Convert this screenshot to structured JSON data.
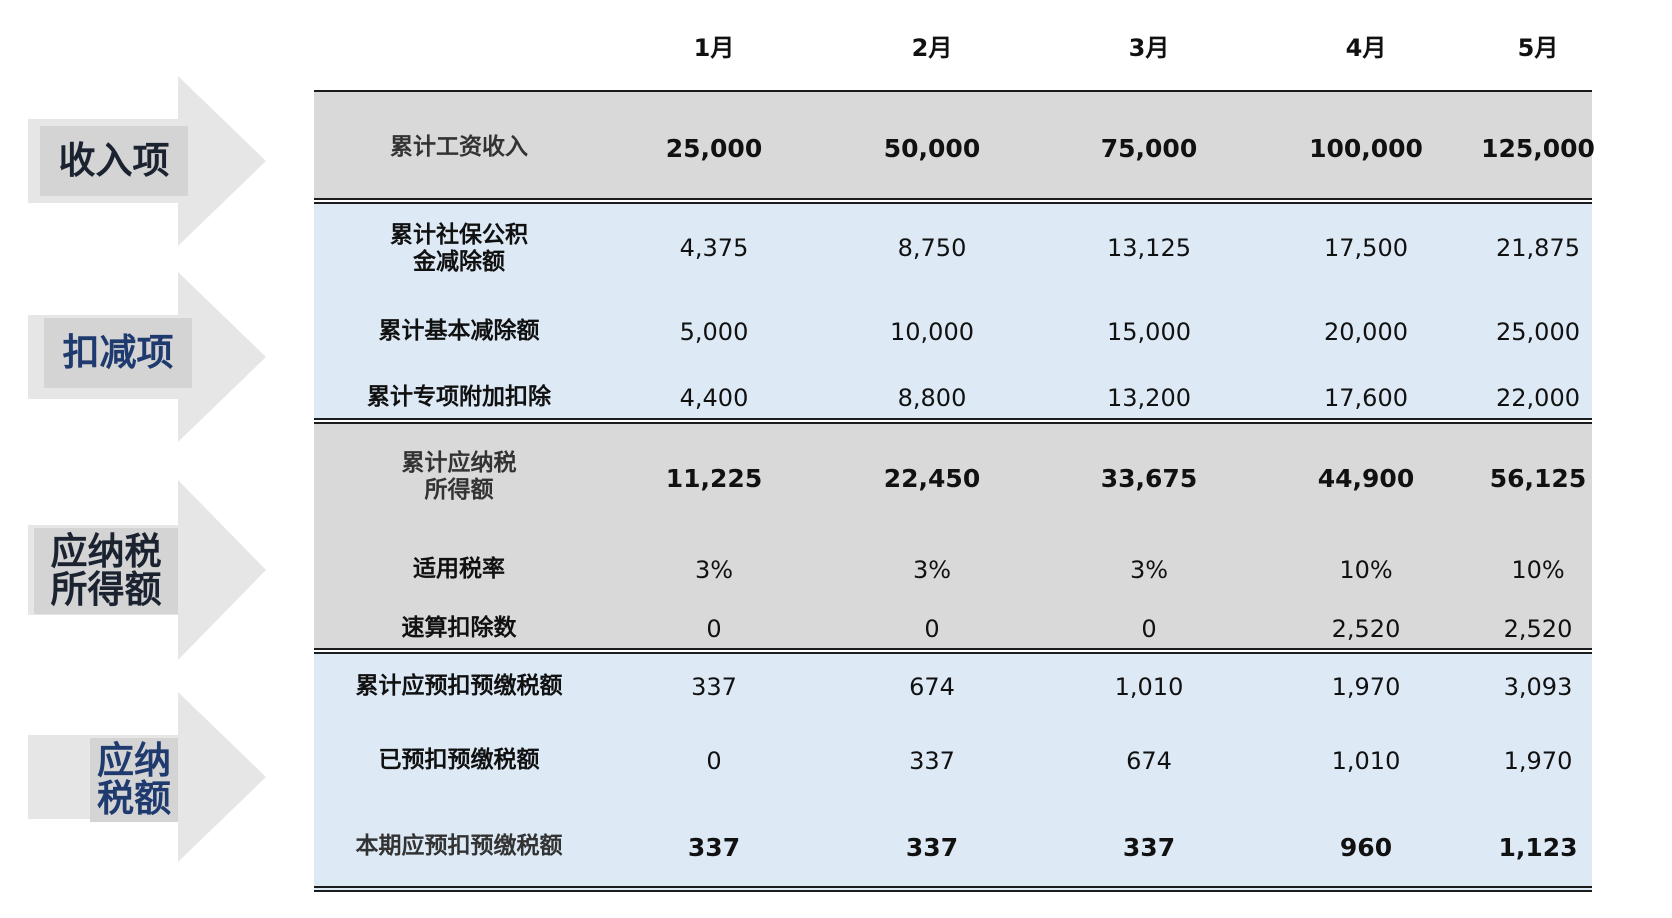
{
  "categories": [
    {
      "label": "收入项",
      "color": "#1b2230"
    },
    {
      "label": "扣减项",
      "color": "#1f3a6e"
    },
    {
      "label": "应纳税\n所得额",
      "color": "#1b2230"
    },
    {
      "label": "应纳\n税额",
      "color": "#1f3a6e"
    }
  ],
  "months": [
    "1月",
    "2月",
    "3月",
    "4月",
    "5月"
  ],
  "rows": [
    {
      "label": "累计工资收入",
      "values": [
        "25,000",
        "50,000",
        "75,000",
        "100,000",
        "125,000"
      ]
    },
    {
      "label": "累计社保公积\n金减除额",
      "values": [
        "4,375",
        "8,750",
        "13,125",
        "17,500",
        "21,875"
      ]
    },
    {
      "label": "累计基本减除额",
      "values": [
        "5,000",
        "10,000",
        "15,000",
        "20,000",
        "25,000"
      ]
    },
    {
      "label": "累计专项附加扣除",
      "values": [
        "4,400",
        "8,800",
        "13,200",
        "17,600",
        "22,000"
      ]
    },
    {
      "label": "累计应纳税\n所得额",
      "values": [
        "11,225",
        "22,450",
        "33,675",
        "44,900",
        "56,125"
      ]
    },
    {
      "label": "适用税率",
      "values": [
        "3%",
        "3%",
        "3%",
        "10%",
        "10%"
      ]
    },
    {
      "label": "速算扣除数",
      "values": [
        "0",
        "0",
        "0",
        "2,520",
        "2,520"
      ]
    },
    {
      "label": "累计应预扣预缴税额",
      "values": [
        "337",
        "674",
        "1,010",
        "1,970",
        "3,093"
      ]
    },
    {
      "label": "已预扣预缴税额",
      "values": [
        "0",
        "337",
        "674",
        "1,010",
        "1,970"
      ]
    },
    {
      "label": "本期应预扣预缴税额",
      "values": [
        "337",
        "337",
        "337",
        "960",
        "1,123"
      ]
    }
  ],
  "colors": {
    "gray_band": "#d9d9d9",
    "blue_band": "#ddeaf6",
    "arrow_fill": "#e6e6e6",
    "label_box": "#d4d4d4"
  }
}
